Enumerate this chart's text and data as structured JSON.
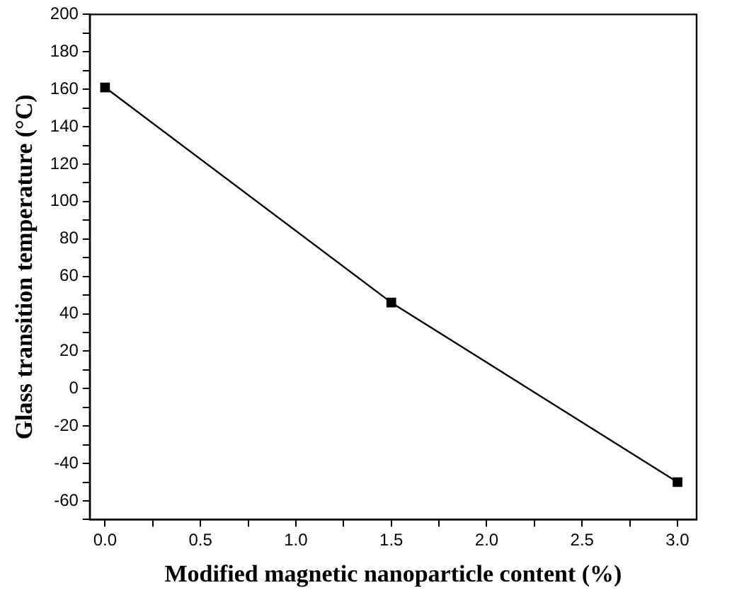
{
  "chart_data": {
    "type": "line",
    "xlabel": "Modified magnetic nanoparticle content (%)",
    "ylabel": "Glass transition temperature (°C)",
    "x": [
      0,
      1.5,
      3.0
    ],
    "series": [
      {
        "color": "#000000",
        "values": [
          161,
          46,
          -50
        ]
      }
    ],
    "xlim": [
      -0.08,
      3.1
    ],
    "xticks": [
      {
        "value": 0,
        "label": "0.0"
      },
      {
        "value": 0.25,
        "label": null
      },
      {
        "value": 0.5,
        "label": "0.5"
      },
      {
        "value": 0.75,
        "label": null
      },
      {
        "value": 1,
        "label": "1.0"
      },
      {
        "value": 1.25,
        "label": null
      },
      {
        "value": 1.5,
        "label": "1.5"
      },
      {
        "value": 1.75,
        "label": null
      },
      {
        "value": 2,
        "label": "2.0"
      },
      {
        "value": 2.25,
        "label": null
      },
      {
        "value": 2.5,
        "label": "2.5"
      },
      {
        "value": 2.75,
        "label": null
      },
      {
        "value": 3,
        "label": "3.0"
      }
    ],
    "ylim": [
      -70,
      200
    ],
    "yticks": [
      {
        "value": -70,
        "label": null
      },
      -60,
      {
        "value": -50,
        "label": null
      },
      -40,
      {
        "value": -30,
        "label": null
      },
      -20,
      {
        "value": -10,
        "label": null
      },
      0,
      {
        "value": 10,
        "label": null
      },
      20,
      {
        "value": 30,
        "label": null
      },
      40,
      {
        "value": 50,
        "label": null
      },
      60,
      {
        "value": 70,
        "label": null
      },
      80,
      {
        "value": 90,
        "label": null
      },
      100,
      {
        "value": 110,
        "label": null
      },
      120,
      {
        "value": 130,
        "label": null
      },
      140,
      {
        "value": 150,
        "label": null
      },
      160,
      {
        "value": 170,
        "label": null
      },
      180,
      {
        "value": 190,
        "label": null
      },
      200
    ],
    "grid": false,
    "legend": false,
    "marker": "square",
    "line_style": "solid"
  }
}
